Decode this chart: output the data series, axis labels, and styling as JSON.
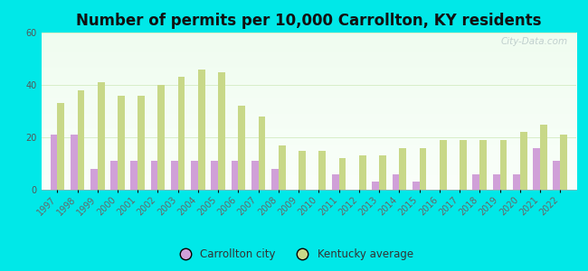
{
  "title": "Number of permits per 10,000 Carrollton, KY residents",
  "years": [
    1997,
    1998,
    1999,
    2000,
    2001,
    2002,
    2003,
    2004,
    2005,
    2006,
    2007,
    2008,
    2009,
    2010,
    2011,
    2012,
    2013,
    2014,
    2015,
    2016,
    2017,
    2018,
    2019,
    2020,
    2021,
    2022
  ],
  "carrollton": [
    21,
    21,
    8,
    11,
    11,
    11,
    11,
    11,
    11,
    11,
    11,
    8,
    0,
    0,
    6,
    0,
    3,
    6,
    3,
    0,
    0,
    6,
    6,
    6,
    16,
    11
  ],
  "kentucky": [
    33,
    38,
    41,
    36,
    36,
    40,
    43,
    46,
    45,
    32,
    28,
    17,
    15,
    15,
    12,
    13,
    13,
    16,
    16,
    19,
    19,
    19,
    19,
    22,
    25,
    21
  ],
  "bar_color_carrollton": "#d0a0d8",
  "bar_color_kentucky": "#c8d888",
  "ylim": [
    0,
    60
  ],
  "yticks": [
    0,
    20,
    40,
    60
  ],
  "background_outer": "#00e8e8",
  "bg_top": "#eafaf0",
  "bg_bottom": "#f8fff8",
  "grid_color": "#d8eec8",
  "watermark": "City-Data.com",
  "legend_label_city": "Carrollton city",
  "legend_label_state": "Kentucky average",
  "title_fontsize": 12,
  "tick_fontsize": 7,
  "bar_width": 0.35
}
